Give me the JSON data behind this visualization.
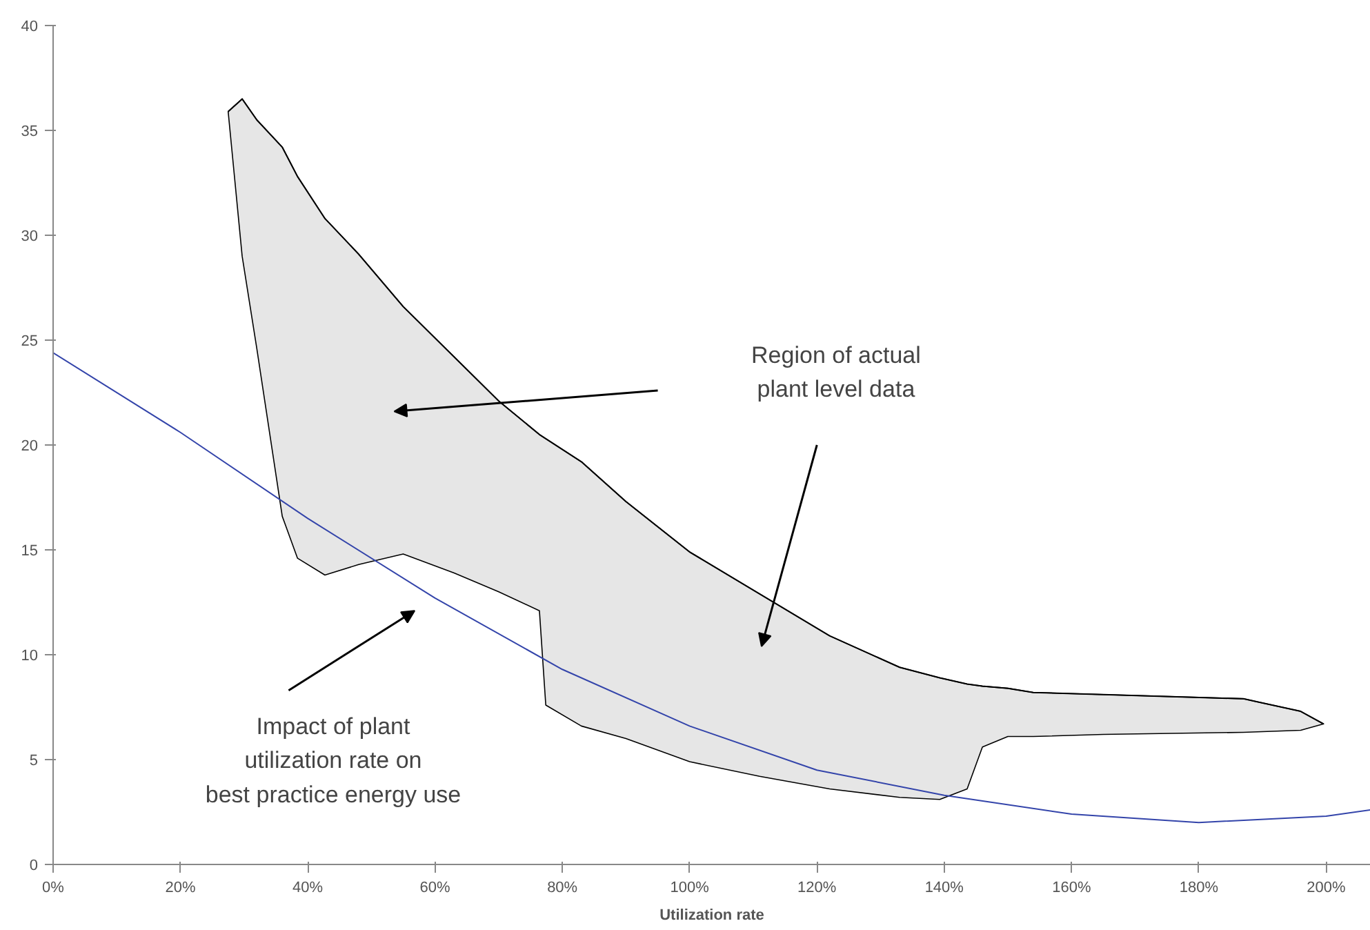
{
  "chart_data": {
    "type": "line",
    "xlabel": "Utilization rate",
    "xlim": [
      0,
      207
    ],
    "ylim": [
      0,
      40
    ],
    "xticks": [
      {
        "value": 0,
        "label": "0%"
      },
      {
        "value": 20,
        "label": "20%"
      },
      {
        "value": 40,
        "label": "40%"
      },
      {
        "value": 60,
        "label": "60%"
      },
      {
        "value": 80,
        "label": "80%"
      },
      {
        "value": 100,
        "label": "100%"
      },
      {
        "value": 120,
        "label": "120%"
      },
      {
        "value": 140,
        "label": "140%"
      },
      {
        "value": 160,
        "label": "160%"
      },
      {
        "value": 180,
        "label": "180%"
      },
      {
        "value": 200,
        "label": "200%"
      }
    ],
    "yticks": [
      0,
      5,
      10,
      15,
      20,
      25,
      30,
      35,
      40
    ],
    "grid": false,
    "marker": "none",
    "line_style": "solid",
    "series": [
      {
        "color": "#000000",
        "x": [
          27.5,
          29.7,
          32,
          36,
          38.4,
          42.7,
          48,
          55,
          63,
          70,
          76.4,
          77.4,
          83,
          90,
          100,
          111,
          122,
          133,
          139.3,
          143.6,
          146,
          150,
          154,
          165,
          187,
          196,
          199.6
        ],
        "values": [
          35.9,
          36.5,
          35.5,
          34.2,
          32.8,
          30.8,
          29.1,
          26.6,
          24.2,
          22.1,
          20.5,
          20.3,
          19.2,
          17.3,
          14.9,
          12.9,
          10.9,
          9.4,
          8.9,
          8.6,
          8.5,
          8.4,
          8.2,
          8.1,
          7.9,
          7.3,
          6.7
        ],
        "upper": [
          35.9,
          36.5,
          35.5,
          34.2,
          32.8,
          30.8,
          29.1,
          26.6,
          24.2,
          22.1,
          20.5,
          20.3,
          19.2,
          17.3,
          14.9,
          12.9,
          10.9,
          9.4,
          8.9,
          8.6,
          8.5,
          8.4,
          8.2,
          8.1,
          7.9,
          7.3,
          6.7
        ],
        "lower": [
          35.9,
          29,
          24.6,
          16.6,
          14.6,
          13.8,
          14.3,
          14.8,
          13.9,
          13,
          12.1,
          7.6,
          6.6,
          6,
          4.9,
          4.2,
          3.6,
          3.2,
          3.1,
          3.6,
          5.6,
          6.1,
          6.1,
          6.2,
          6.3,
          6.4,
          6.7
        ]
      },
      {
        "color": "#3344aa",
        "x": [
          0,
          20,
          40,
          60,
          80,
          100,
          120,
          140,
          160,
          180,
          200,
          207
        ],
        "values": [
          24.4,
          20.6,
          16.5,
          12.7,
          9.3,
          6.6,
          4.5,
          3.3,
          2.4,
          2.0,
          2.3,
          2.6
        ]
      }
    ],
    "annotations": [
      "Region of actual\nplant level data",
      "Impact of plant\nutilization rate on\nbest practice energy use"
    ]
  }
}
